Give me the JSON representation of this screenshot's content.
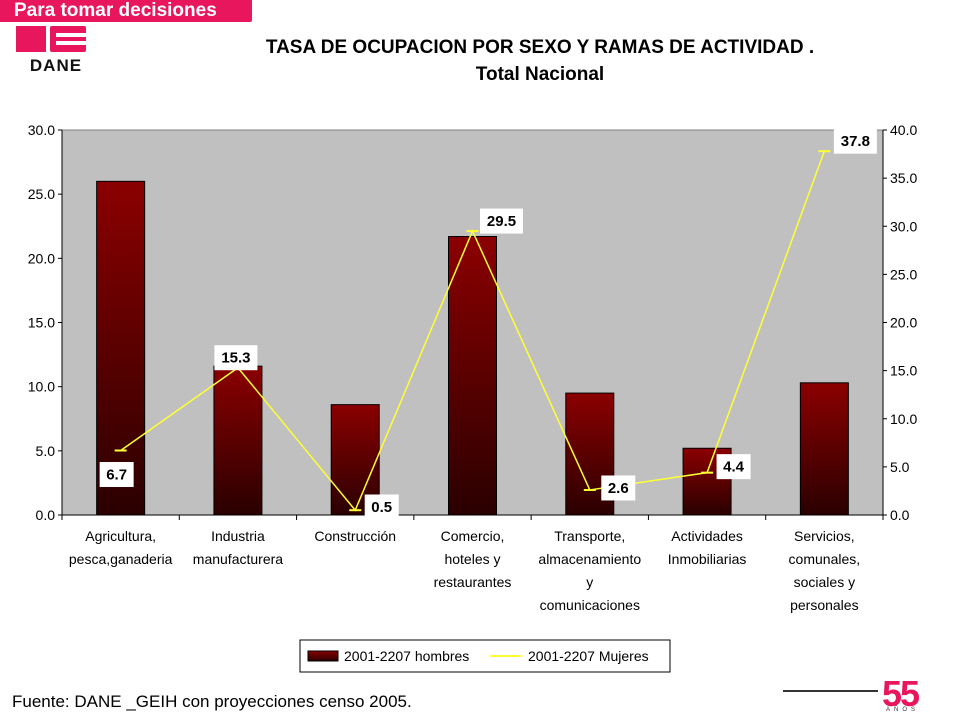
{
  "header": {
    "tagline": "Para tomar decisiones",
    "logo_text": "DANE",
    "title_line1": "TASA DE OCUPACION POR SEXO Y RAMAS DE ACTIVIDAD .",
    "title_line2": "Total Nacional"
  },
  "footer": {
    "source": "Fuente: DANE _GEIH con proyecciones censo 2005.",
    "anniversary": "55",
    "anniversary_sub": "AÑOS"
  },
  "colors": {
    "brand": "#e8175d",
    "bar_top": "#8b0000",
    "bar_bottom": "#2a0000",
    "line": "#ffff33",
    "plot_bg": "#c0c0c0"
  },
  "chart_data": {
    "type": "bar",
    "categories": [
      [
        "Agricultura,",
        "pesca,ganaderia"
      ],
      [
        "Industria",
        "manufacturera"
      ],
      [
        "Construcción"
      ],
      [
        "Comercio,",
        "hoteles y",
        "restaurantes"
      ],
      [
        "Transporte,",
        "almacenamiento",
        "y",
        "comunicaciones"
      ],
      [
        "Actividades",
        "Inmobiliarias"
      ],
      [
        "Servicios,",
        "comunales,",
        "sociales y",
        "personales"
      ]
    ],
    "series": [
      {
        "name": "2001-2207 hombres",
        "type": "bar",
        "axis": "left",
        "values": [
          26.0,
          11.6,
          8.6,
          21.7,
          9.5,
          5.2,
          10.3
        ]
      },
      {
        "name": "2001-2207 Mujeres",
        "type": "line",
        "axis": "right",
        "values": [
          6.7,
          15.3,
          0.5,
          29.5,
          2.6,
          4.4,
          37.8
        ],
        "labels": [
          "6.7",
          "15.3",
          "0.5",
          "29.5",
          "2.6",
          "4.4",
          "37.8"
        ]
      }
    ],
    "y_left": {
      "min": 0,
      "max": 30,
      "ticks": [
        "0.0",
        "5.0",
        "10.0",
        "15.0",
        "20.0",
        "25.0",
        "30.0"
      ]
    },
    "y_right": {
      "min": 0,
      "max": 40,
      "ticks": [
        "0.0",
        "5.0",
        "10.0",
        "15.0",
        "20.0",
        "25.0",
        "30.0",
        "35.0",
        "40.0"
      ]
    },
    "legend_position": "bottom"
  }
}
